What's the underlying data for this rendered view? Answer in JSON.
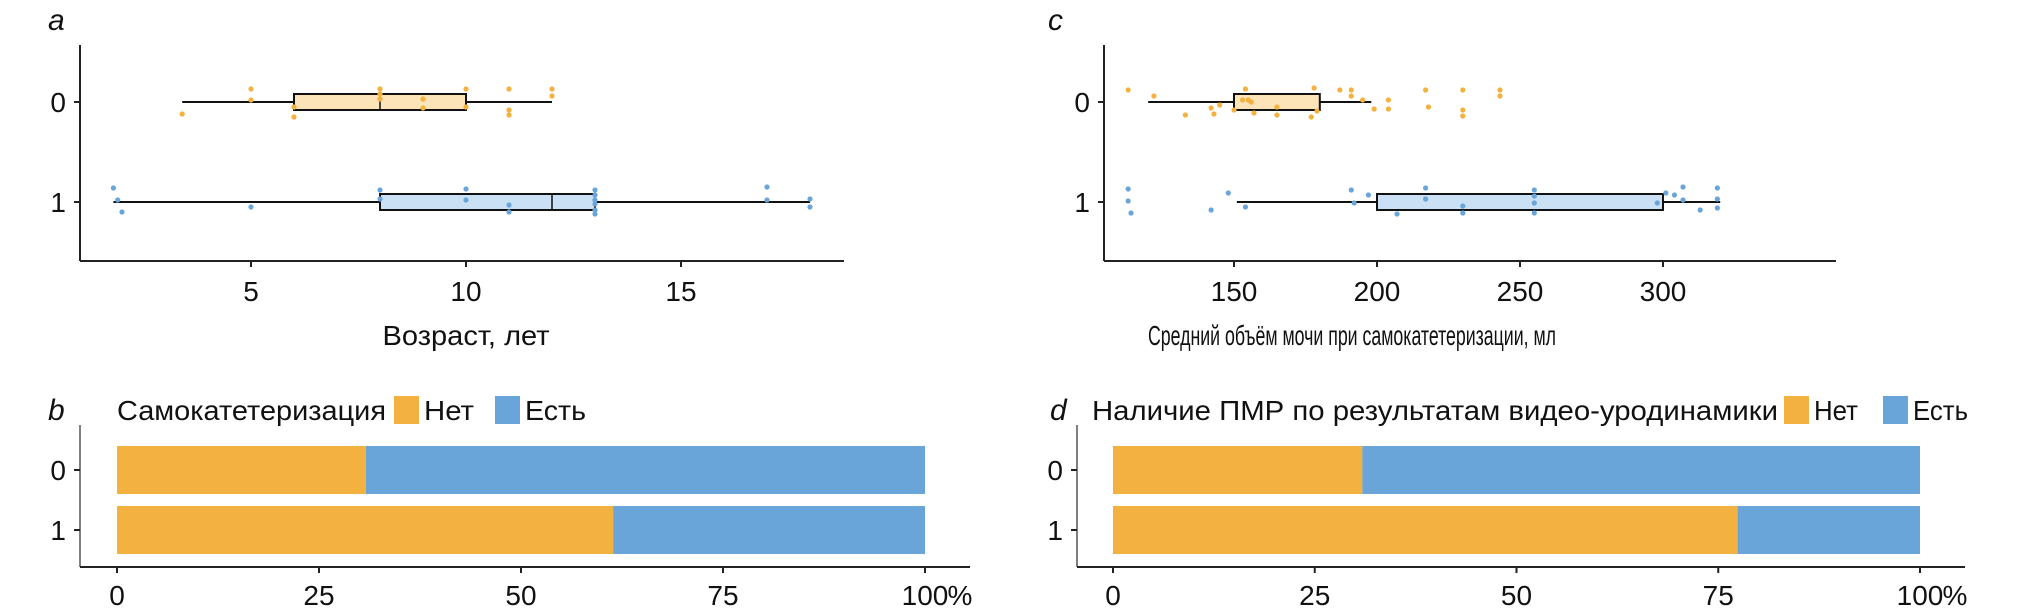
{
  "colors": {
    "no": "#f3b13f",
    "yes": "#69a5d8",
    "box0": "#fde3b8",
    "box1": "#c9e0f5"
  },
  "chart_data": [
    {
      "panel": "a",
      "type": "boxplot",
      "xlabel": "Возраст, лет",
      "categories": [
        "0",
        "1"
      ],
      "xlim": [
        1.5,
        18.8
      ],
      "xticks": [
        5,
        10,
        15
      ],
      "boxes": [
        {
          "group": "0",
          "whisker_low": 3.4,
          "q1": 6,
          "median": 8,
          "q3": 10,
          "whisker_high": 12
        },
        {
          "group": "1",
          "whisker_low": 1.8,
          "q1": 8,
          "median": 12,
          "q3": 13,
          "whisker_high": 18
        }
      ],
      "points": [
        [
          [
            3.4,
            -0.12
          ],
          [
            5,
            0.13
          ],
          [
            5,
            0.02
          ],
          [
            6,
            -0.05
          ],
          [
            6,
            -0.15
          ],
          [
            8,
            0.13
          ],
          [
            8,
            0.08
          ],
          [
            8,
            0.03
          ],
          [
            9,
            0.03
          ],
          [
            9,
            -0.06
          ],
          [
            10,
            0.13
          ],
          [
            10,
            -0.05
          ],
          [
            11,
            0.13
          ],
          [
            11,
            -0.08
          ],
          [
            11,
            -0.13
          ],
          [
            12,
            0.13
          ],
          [
            12,
            0.06
          ]
        ],
        [
          [
            1.8,
            0.14
          ],
          [
            1.9,
            0.02
          ],
          [
            2,
            -0.1
          ],
          [
            5,
            -0.05
          ],
          [
            8,
            0.12
          ],
          [
            8,
            0.03
          ],
          [
            10,
            0.13
          ],
          [
            10,
            0.02
          ],
          [
            11,
            -0.03
          ],
          [
            11,
            -0.1
          ],
          [
            13,
            0.12
          ],
          [
            13,
            0.07
          ],
          [
            13,
            0.02
          ],
          [
            13,
            -0.02
          ],
          [
            13,
            -0.08
          ],
          [
            13,
            -0.12
          ],
          [
            17,
            0.15
          ],
          [
            17,
            0.02
          ],
          [
            18,
            0.03
          ],
          [
            18,
            -0.05
          ]
        ]
      ]
    },
    {
      "panel": "c",
      "type": "boxplot",
      "xlabel": "Средний объём мочи при самокатетеризации, мл",
      "categories": [
        "0",
        "1"
      ],
      "xlim": [
        103,
        332
      ],
      "xticks": [
        150,
        200,
        250,
        300
      ],
      "boxes": [
        {
          "group": "0",
          "whisker_low": 120,
          "q1": 150,
          "median": 150,
          "q3": 180,
          "whisker_high": 198
        },
        {
          "group": "1",
          "whisker_low": 151,
          "q1": 200,
          "median": 300,
          "q3": 300,
          "whisker_high": 320
        }
      ],
      "points": [
        [
          [
            113,
            0.12
          ],
          [
            122,
            0.06
          ],
          [
            133,
            -0.13
          ],
          [
            142,
            -0.06
          ],
          [
            143,
            -0.12
          ],
          [
            145,
            -0.03
          ],
          [
            150,
            -0.08
          ],
          [
            153,
            0.02
          ],
          [
            154,
            0.13
          ],
          [
            155,
            0.02
          ],
          [
            156,
            0
          ],
          [
            157,
            -0.11
          ],
          [
            165,
            -0.05
          ],
          [
            165,
            -0.13
          ],
          [
            177,
            -0.15
          ],
          [
            178,
            0.14
          ],
          [
            179,
            -0.09
          ],
          [
            187,
            0.12
          ],
          [
            191,
            0.12
          ],
          [
            191,
            0.06
          ],
          [
            195,
            0.02
          ],
          [
            199,
            -0.07
          ],
          [
            204,
            0.02
          ],
          [
            204,
            -0.07
          ],
          [
            217,
            0.12
          ],
          [
            218,
            -0.05
          ],
          [
            230,
            0.12
          ],
          [
            230,
            -0.08
          ],
          [
            230,
            -0.14
          ],
          [
            243,
            0.12
          ],
          [
            243,
            0.06
          ]
        ],
        [
          [
            113,
            0.13
          ],
          [
            113,
            0.01
          ],
          [
            114,
            -0.11
          ],
          [
            142,
            -0.08
          ],
          [
            148,
            0.09
          ],
          [
            154,
            -0.05
          ],
          [
            191,
            0.12
          ],
          [
            192,
            -0.01
          ],
          [
            197,
            0.07
          ],
          [
            207,
            -0.12
          ],
          [
            217,
            0.14
          ],
          [
            217,
            0.03
          ],
          [
            230,
            -0.04
          ],
          [
            230,
            -0.11
          ],
          [
            255,
            0.12
          ],
          [
            255,
            0.06
          ],
          [
            255,
            -0.01
          ],
          [
            255,
            -0.11
          ],
          [
            298,
            -0.01
          ],
          [
            301,
            0.09
          ],
          [
            304,
            0.07
          ],
          [
            307,
            0.15
          ],
          [
            307,
            0.02
          ],
          [
            313,
            -0.08
          ],
          [
            319,
            0.14
          ],
          [
            319,
            0.03
          ],
          [
            319,
            -0.06
          ]
        ]
      ]
    },
    {
      "panel": "b",
      "type": "bar",
      "stacked": true,
      "orientation": "horizontal",
      "title": "Самокатетеризация",
      "categories": [
        "0",
        "1"
      ],
      "xlim": [
        0,
        100
      ],
      "xticks": [
        0,
        25,
        50,
        75,
        100
      ],
      "unit": "%",
      "series": [
        {
          "name": "Нет",
          "values": [
            30.8,
            61.4
          ]
        },
        {
          "name": "Есть",
          "values": [
            69.2,
            38.6
          ]
        }
      ]
    },
    {
      "panel": "d",
      "type": "bar",
      "stacked": true,
      "orientation": "horizontal",
      "title": "Наличие ПМР по результатам видео-уродинамики",
      "categories": [
        "0",
        "1"
      ],
      "xlim": [
        0,
        100
      ],
      "xticks": [
        0,
        25,
        50,
        75,
        100
      ],
      "unit": "%",
      "series": [
        {
          "name": "Нет",
          "values": [
            30.9,
            77.4
          ]
        },
        {
          "name": "Есть",
          "values": [
            69.1,
            22.6
          ]
        }
      ]
    }
  ]
}
